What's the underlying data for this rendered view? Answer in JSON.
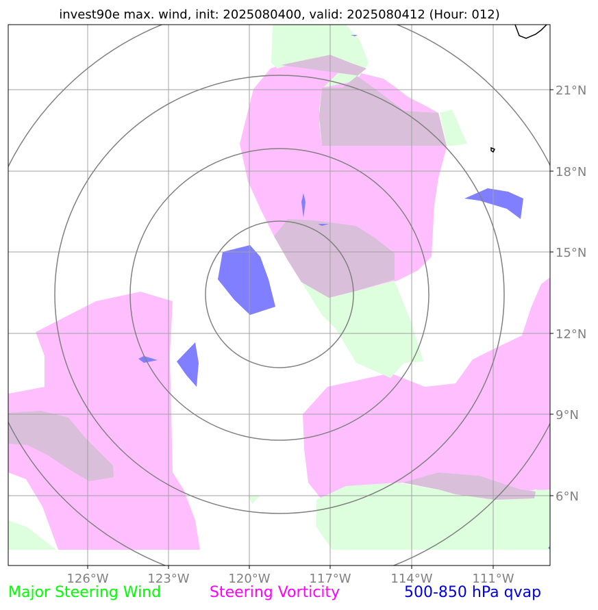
{
  "title": "invest90e max. wind, init: 2025080400, valid: 2025080412 (Hour: 012)",
  "map": {
    "longitude_ticks": [
      "126°W",
      "123°W",
      "120°W",
      "117°W",
      "114°W",
      "111°W"
    ],
    "latitude_ticks": [
      "21°N",
      "18°N",
      "15°N",
      "12°N",
      "9°N",
      "6°N"
    ],
    "range_rings_centered_on": {
      "lon": -120.0,
      "lat": 13.5
    },
    "range_ring_count": 4
  },
  "legend": {
    "steering_wind": {
      "label": "Major Steering Wind",
      "color": "#00ff00"
    },
    "steering_vorticity": {
      "label": "Steering Vorticity",
      "color": "#ff00ff"
    },
    "qvap": {
      "label": "500-850 hPa qvap",
      "color": "#0000dd"
    }
  },
  "colors": {
    "wind_fill": "#ddffdd",
    "vorticity_fill": "#ffbfff",
    "overlap_fill": "#d9bfd9",
    "qvap_fill": "#7f7fff",
    "grid": "#a0a0a0",
    "ring": "#808080",
    "tick_label": "#808080"
  }
}
